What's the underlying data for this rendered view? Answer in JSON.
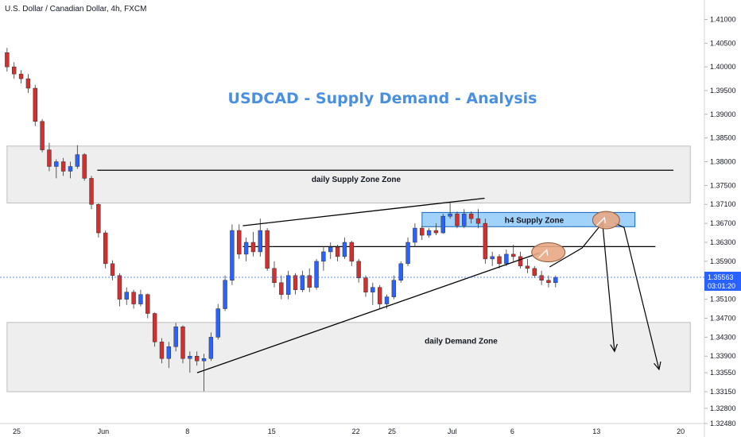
{
  "chart_data": {
    "type": "candlestick",
    "symbol_title": "U.S. Dollar / Canadian Dollar, 4h, FXCM",
    "headline": "USDCAD - Supply Demand - Analysis",
    "ylim": [
      1.3248,
      1.4141
    ],
    "y_ticks": [
      "1.41000",
      "1.40500",
      "1.40000",
      "1.39500",
      "1.39000",
      "1.38500",
      "1.38000",
      "1.37500",
      "1.37100",
      "1.36700",
      "1.36300",
      "1.35900",
      "1.35100",
      "1.34700",
      "1.34300",
      "1.33900",
      "1.33550",
      "1.33150",
      "1.32800",
      "1.32480"
    ],
    "x_ticks": [
      {
        "label": "25",
        "x": 0
      },
      {
        "label": "Jun",
        "x": 7
      },
      {
        "label": "8",
        "x": 14
      },
      {
        "label": "15",
        "x": 21
      },
      {
        "label": "22",
        "x": 28
      },
      {
        "label": "25",
        "x": 31
      },
      {
        "label": "Jul",
        "x": 36
      },
      {
        "label": "6",
        "x": 41
      },
      {
        "label": "13",
        "x": 48
      },
      {
        "label": "20",
        "x": 55
      }
    ],
    "last_price": "1.35563",
    "countdown": "03:01:20",
    "colors": {
      "up": "#2962ff",
      "down": "#d32f2f",
      "price_tag": "#2962ff",
      "headline": "#4a90e2",
      "zone_fill": "#ececec",
      "h4_zone_fill": "#90caf9",
      "marker_fill": "#e8a784"
    },
    "zones": [
      {
        "label": "daily Supply Zone Zone",
        "x0": -1,
        "x1": 55.8,
        "y0": 1.3833,
        "y1": 1.3713
      },
      {
        "label": "h4 Supply Zone",
        "x0": 33.5,
        "x1": 51.2,
        "y0": 1.3693,
        "y1": 1.3663
      },
      {
        "label": "daily Demand Zone",
        "x0": -1,
        "x1": 55.8,
        "y0": 1.3461,
        "y1": 1.3315
      }
    ],
    "levels": [
      {
        "x0": 6.5,
        "x1": 54.4,
        "y": 1.3782
      },
      {
        "x0": 18.6,
        "x1": 52.9,
        "y": 1.3621
      }
    ],
    "trendlines": [
      {
        "x0": 18.6,
        "x1": 38.7,
        "y0": 1.3665,
        "y1": 1.3723
      },
      {
        "x0": 14.8,
        "x1": 43.3,
        "y0": 1.3355,
        "y1": 1.3608
      }
    ],
    "paths": [
      [
        [
          44.1,
          1.3578
        ],
        [
          46.8,
          1.3618
        ],
        [
          48.5,
          1.3671
        ],
        [
          49.5,
          1.34
        ]
      ],
      [
        [
          49.5,
          1.3671
        ],
        [
          50.3,
          1.3661
        ],
        [
          53.2,
          1.3362
        ]
      ]
    ],
    "markers": [
      {
        "x": 44.0,
        "y": 1.3609
      },
      {
        "x": 48.8,
        "y": 1.3677
      }
    ],
    "candles": [
      [
        1.403,
        1.404,
        1.399,
        1.4
      ],
      [
        1.4,
        1.401,
        1.3975,
        1.3985
      ],
      [
        1.3985,
        1.3993,
        1.3965,
        1.3975
      ],
      [
        1.3975,
        1.3985,
        1.3945,
        1.3955
      ],
      [
        1.3955,
        1.3962,
        1.3875,
        1.3885
      ],
      [
        1.3885,
        1.389,
        1.382,
        1.3825
      ],
      [
        1.3825,
        1.384,
        1.378,
        1.379
      ],
      [
        1.379,
        1.3805,
        1.3765,
        1.38
      ],
      [
        1.38,
        1.3808,
        1.377,
        1.378
      ],
      [
        1.378,
        1.38,
        1.3765,
        1.379
      ],
      [
        1.379,
        1.3835,
        1.3785,
        1.3815
      ],
      [
        1.3815,
        1.3818,
        1.376,
        1.3765
      ],
      [
        1.3765,
        1.377,
        1.37,
        1.371
      ],
      [
        1.371,
        1.3712,
        1.364,
        1.365
      ],
      [
        1.365,
        1.3655,
        1.3575,
        1.3585
      ],
      [
        1.3585,
        1.3592,
        1.355,
        1.356
      ],
      [
        1.356,
        1.3565,
        1.3495,
        1.351
      ],
      [
        1.351,
        1.3535,
        1.3498,
        1.3525
      ],
      [
        1.3525,
        1.353,
        1.349,
        1.35
      ],
      [
        1.35,
        1.353,
        1.3495,
        1.352
      ],
      [
        1.352,
        1.3522,
        1.347,
        1.348
      ],
      [
        1.348,
        1.3482,
        1.341,
        1.342
      ],
      [
        1.342,
        1.3428,
        1.3375,
        1.3385
      ],
      [
        1.3385,
        1.342,
        1.3365,
        1.341
      ],
      [
        1.341,
        1.346,
        1.34,
        1.3452
      ],
      [
        1.3452,
        1.3455,
        1.3375,
        1.3385
      ],
      [
        1.3385,
        1.34,
        1.3355,
        1.339
      ],
      [
        1.339,
        1.34,
        1.337,
        1.338
      ],
      [
        1.338,
        1.3395,
        1.3316,
        1.3385
      ],
      [
        1.3385,
        1.344,
        1.338,
        1.343
      ],
      [
        1.343,
        1.35,
        1.3425,
        1.349
      ],
      [
        1.349,
        1.356,
        1.3485,
        1.355
      ],
      [
        1.355,
        1.3668,
        1.354,
        1.3655
      ],
      [
        1.3655,
        1.3668,
        1.3595,
        1.3605
      ],
      [
        1.3605,
        1.364,
        1.359,
        1.363
      ],
      [
        1.363,
        1.3652,
        1.36,
        1.361
      ],
      [
        1.361,
        1.368,
        1.36,
        1.3655
      ],
      [
        1.3655,
        1.366,
        1.357,
        1.3575
      ],
      [
        1.3575,
        1.359,
        1.3535,
        1.3545
      ],
      [
        1.3545,
        1.356,
        1.351,
        1.352
      ],
      [
        1.352,
        1.357,
        1.351,
        1.356
      ],
      [
        1.356,
        1.3565,
        1.352,
        1.353
      ],
      [
        1.353,
        1.357,
        1.3525,
        1.356
      ],
      [
        1.356,
        1.3575,
        1.3525,
        1.3535
      ],
      [
        1.3535,
        1.3595,
        1.353,
        1.359
      ],
      [
        1.359,
        1.362,
        1.357,
        1.361
      ],
      [
        1.361,
        1.363,
        1.3595,
        1.362
      ],
      [
        1.362,
        1.3625,
        1.359,
        1.36
      ],
      [
        1.36,
        1.364,
        1.3595,
        1.363
      ],
      [
        1.363,
        1.3633,
        1.358,
        1.359
      ],
      [
        1.359,
        1.3595,
        1.3545,
        1.3555
      ],
      [
        1.3555,
        1.356,
        1.3515,
        1.3525
      ],
      [
        1.3525,
        1.3545,
        1.3498,
        1.3535
      ],
      [
        1.3535,
        1.354,
        1.349,
        1.35
      ],
      [
        1.35,
        1.352,
        1.349,
        1.3515
      ],
      [
        1.3515,
        1.356,
        1.351,
        1.355
      ],
      [
        1.355,
        1.359,
        1.3545,
        1.3585
      ],
      [
        1.3585,
        1.364,
        1.358,
        1.363
      ],
      [
        1.363,
        1.367,
        1.362,
        1.366
      ],
      [
        1.366,
        1.3665,
        1.3635,
        1.3645
      ],
      [
        1.3645,
        1.366,
        1.364,
        1.3655
      ],
      [
        1.3655,
        1.367,
        1.3645,
        1.365
      ],
      [
        1.365,
        1.369,
        1.3648,
        1.3685
      ],
      [
        1.3685,
        1.3715,
        1.368,
        1.369
      ],
      [
        1.369,
        1.3695,
        1.366,
        1.3665
      ],
      [
        1.3665,
        1.37,
        1.366,
        1.369
      ],
      [
        1.369,
        1.3695,
        1.367,
        1.368
      ],
      [
        1.368,
        1.37,
        1.366,
        1.367
      ],
      [
        1.367,
        1.368,
        1.3585,
        1.3595
      ],
      [
        1.3595,
        1.361,
        1.358,
        1.36
      ],
      [
        1.36,
        1.3605,
        1.3575,
        1.3585
      ],
      [
        1.3585,
        1.3615,
        1.358,
        1.3605
      ],
      [
        1.3605,
        1.3625,
        1.359,
        1.36
      ],
      [
        1.36,
        1.361,
        1.3575,
        1.358
      ],
      [
        1.358,
        1.3595,
        1.3565,
        1.3575
      ],
      [
        1.3575,
        1.358,
        1.3555,
        1.356
      ],
      [
        1.356,
        1.357,
        1.354,
        1.355
      ],
      [
        1.355,
        1.356,
        1.3535,
        1.3545
      ],
      [
        1.3545,
        1.356,
        1.3535,
        1.3556
      ]
    ]
  }
}
